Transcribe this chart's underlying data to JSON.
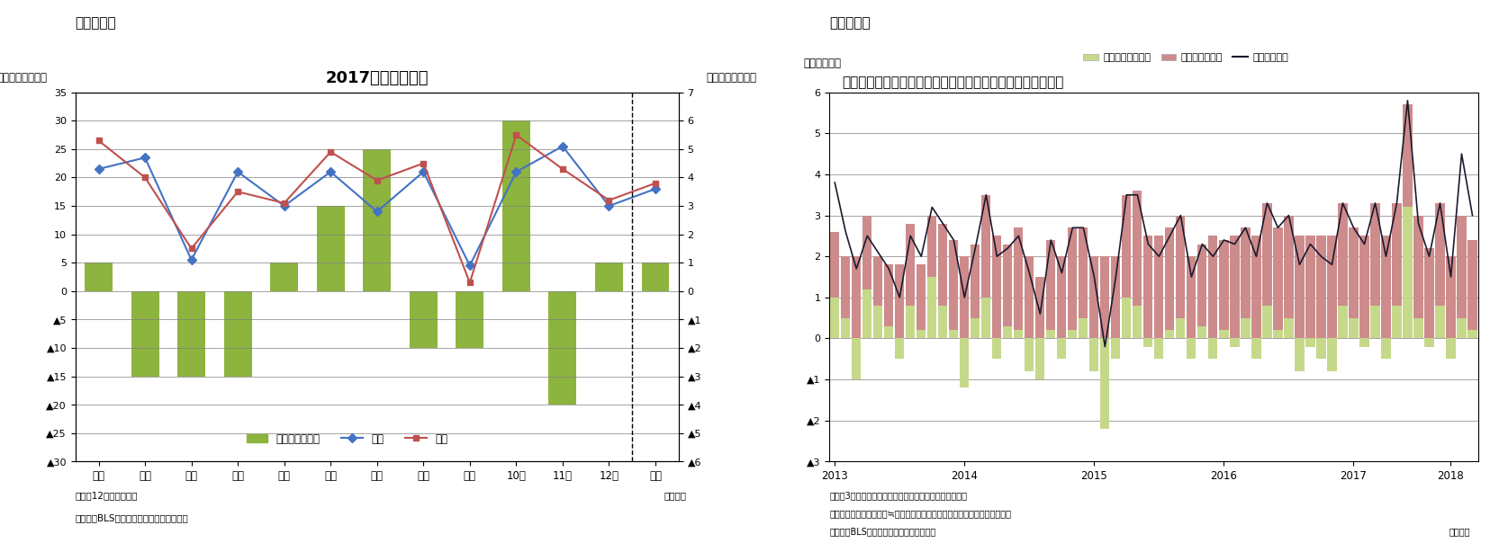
{
  "fig3": {
    "title": "2017年改定の結果",
    "ylabel_left": "（前月差、万人）",
    "ylabel_right": "（改定幅、万人）",
    "header": "（図表３）",
    "categories": [
      "１月",
      "２月",
      "３月",
      "４月",
      "５月",
      "６月",
      "７月",
      "８月",
      "９月",
      "10月",
      "11月",
      "12月",
      "平均"
    ],
    "bar_values": [
      1,
      -3,
      -3,
      -3,
      1,
      3,
      5,
      -2,
      -2,
      6,
      -4,
      1,
      1
    ],
    "maekkai": [
      21.5,
      23.5,
      5.5,
      21.0,
      15.0,
      21.0,
      14.0,
      21.0,
      4.5,
      21.0,
      25.5,
      15.0,
      18.0
    ],
    "konkai": [
      26.5,
      20.0,
      7.5,
      17.5,
      15.5,
      24.5,
      19.5,
      22.5,
      1.5,
      27.5,
      21.5,
      16.0,
      19.0
    ],
    "ylim_left": [
      -30,
      35
    ],
    "ylim_right": [
      -6,
      7
    ],
    "yticks_left": [
      35,
      30,
      25,
      20,
      15,
      10,
      5,
      0,
      -5,
      -10,
      -15,
      -20,
      -25,
      -30
    ],
    "ytick_labels_left": [
      "35",
      "30",
      "25",
      "20",
      "15",
      "10",
      "5",
      "0",
      "▲5",
      "▲10",
      "▲15",
      "▲20",
      "▲25",
      "▲30"
    ],
    "yticks_right": [
      7,
      6,
      5,
      4,
      3,
      2,
      1,
      0,
      -1,
      -2,
      -3,
      -4,
      -5,
      -6
    ],
    "ytick_labels_right": [
      "7",
      "6",
      "5",
      "4",
      "3",
      "2",
      "1",
      "0",
      "▲1",
      "▲2",
      "▲3",
      "▲4",
      "▲5",
      "▲6"
    ],
    "bar_color": "#8db43e",
    "maekkai_color": "#4472c4",
    "konkai_color": "#c0504d",
    "note1": "（注）12月は未確定値",
    "note2": "（資料）BLSよりニッセイ基礎研究所作成",
    "note3": "（月次）"
  },
  "fig4": {
    "title": "民間非農業部門の週当たり賃金伸び率（年率換算、寄与度）",
    "ylabel_left": "（年率、％）",
    "header": "（図表４）",
    "legend1": "週当たり労働時間",
    "legend2": "時間当たり賃金",
    "legend3": "週当たり賃金",
    "bar_color_hours": "#c6d98a",
    "bar_color_wage": "#cd8b8b",
    "line_color": "#1a1a2e",
    "ylim": [
      -3,
      6
    ],
    "yticks": [
      6,
      5,
      4,
      3,
      2,
      1,
      0,
      -1,
      -2,
      -3
    ],
    "ytick_labels": [
      "6",
      "5",
      "4",
      "3",
      "2",
      "1",
      "0",
      "▲1",
      "▲2",
      "▲3"
    ],
    "x_labels": [
      "2013",
      "2014",
      "2015",
      "2016",
      "2017",
      "2018"
    ],
    "hours_data": [
      1.0,
      0.5,
      -1.0,
      1.2,
      0.8,
      0.3,
      -0.5,
      0.8,
      0.2,
      1.5,
      0.8,
      0.2,
      -1.2,
      0.5,
      1.0,
      -0.5,
      0.3,
      0.2,
      -0.8,
      -1.0,
      0.2,
      -0.5,
      0.2,
      0.5,
      -0.8,
      -2.2,
      -0.5,
      1.0,
      0.8,
      -0.2,
      -0.5,
      0.2,
      0.5,
      -0.5,
      0.3,
      -0.5,
      0.2,
      -0.2,
      0.5,
      -0.5,
      0.8,
      0.2,
      0.5,
      -0.8,
      -0.2,
      -0.5,
      -0.8,
      0.8,
      0.5,
      -0.2,
      0.8,
      -0.5,
      0.8,
      3.2,
      0.5,
      -0.2,
      0.8,
      -0.5,
      0.5,
      0.2
    ],
    "wage_data": [
      1.6,
      1.5,
      2.0,
      1.8,
      1.2,
      1.5,
      1.8,
      2.0,
      1.6,
      1.5,
      2.0,
      2.2,
      2.0,
      1.8,
      2.5,
      2.5,
      2.0,
      2.5,
      2.0,
      1.5,
      2.2,
      2.0,
      2.5,
      2.2,
      2.0,
      2.0,
      2.0,
      2.5,
      2.8,
      2.5,
      2.5,
      2.5,
      2.5,
      2.0,
      2.0,
      2.5,
      2.2,
      2.5,
      2.2,
      2.5,
      2.5,
      2.5,
      2.5,
      2.5,
      2.5,
      2.5,
      2.5,
      2.5,
      2.2,
      2.5,
      2.5,
      2.5,
      2.5,
      2.5,
      2.5,
      2.2,
      2.5,
      2.0,
      2.5,
      2.2
    ],
    "line_data": [
      3.8,
      2.6,
      1.7,
      2.5,
      2.1,
      1.7,
      1.0,
      2.5,
      2.0,
      3.2,
      2.8,
      2.4,
      1.0,
      2.2,
      3.5,
      2.0,
      2.2,
      2.5,
      1.6,
      0.6,
      2.4,
      1.6,
      2.7,
      2.7,
      1.5,
      -0.2,
      1.5,
      3.5,
      3.5,
      2.3,
      2.0,
      2.5,
      3.0,
      1.5,
      2.3,
      2.0,
      2.4,
      2.3,
      2.7,
      2.0,
      3.3,
      2.7,
      3.0,
      1.8,
      2.3,
      2.0,
      1.8,
      3.3,
      2.7,
      2.3,
      3.3,
      2.0,
      3.3,
      5.8,
      2.8,
      2.0,
      3.3,
      1.5,
      4.5,
      3.0
    ],
    "note1": "（注）3カ月後方移動平均後の前月比伸び率（年率換算）",
    "note2": "　　週当たり賃金伸び率≒週当たり労働時間伸び率＋時間当たり賃金伸び率",
    "note3": "（資料）BLSよりニッセイ基礎研究所作成",
    "note4": "（月次）"
  }
}
